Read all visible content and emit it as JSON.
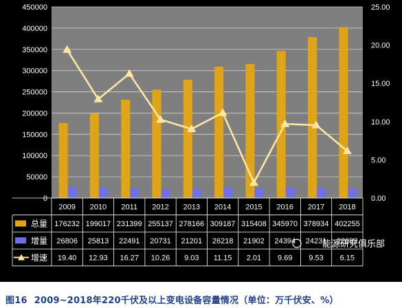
{
  "caption": {
    "number": "图16",
    "text": "2009~2018年220千伏及以上变电设备容量情况（单位：万千伏安、%）"
  },
  "watermark": "能源研究俱乐部",
  "colors": {
    "background": "#000000",
    "plot_background": "#7f7f7f",
    "total_bar": "#e0a417",
    "increment_bar": "#6f6fe6",
    "growth_line": "#ffe6a3",
    "gridline": "#cfcfcf",
    "caption": "#1f3f8a"
  },
  "chart_data": {
    "type": "bar",
    "categories": [
      "2009",
      "2010",
      "2011",
      "2012",
      "2013",
      "2014",
      "2015",
      "2016",
      "2017",
      "2018"
    ],
    "series": [
      {
        "name": "总量",
        "type": "bar",
        "axis": "left",
        "values": [
          176232,
          199017,
          231399,
          255137,
          278166,
          309187,
          315408,
          345970,
          378934,
          402255
        ],
        "labels": [
          "176232",
          "199017",
          "231399",
          "255137",
          "278166",
          "309187",
          "315408",
          "345970",
          "378934",
          "402255"
        ]
      },
      {
        "name": "增量",
        "type": "bar",
        "axis": "left",
        "values": [
          26806,
          25813,
          22491,
          20731,
          21201,
          26218,
          21902,
          24394,
          24231,
          22082
        ],
        "labels": [
          "26806",
          "25813",
          "22491",
          "20731",
          "21201",
          "26218",
          "21902",
          "24394",
          "24231",
          "22082"
        ]
      },
      {
        "name": "增速",
        "type": "line",
        "axis": "right",
        "values": [
          19.4,
          12.93,
          16.27,
          10.26,
          9.03,
          11.15,
          2.01,
          9.69,
          9.53,
          6.15
        ],
        "labels": [
          "19.40",
          "12.93",
          "16.27",
          "10.26",
          "9.03",
          "11.15",
          "2.01",
          "9.69",
          "9.53",
          "6.15"
        ]
      }
    ],
    "y_left": {
      "min": 0,
      "max": 450000,
      "ticks": [
        0,
        50000,
        100000,
        150000,
        200000,
        250000,
        300000,
        350000,
        400000,
        450000
      ],
      "tick_labels": [
        "0",
        "50000",
        "100000",
        "150000",
        "200000",
        "250000",
        "300000",
        "350000",
        "400000",
        "450000"
      ]
    },
    "y_right": {
      "min": 0,
      "max": 25,
      "ticks": [
        0,
        5,
        10,
        15,
        20,
        25
      ],
      "tick_labels": [
        "0.00",
        "5.00",
        "10.00",
        "15.00",
        "20.00",
        "25.00"
      ]
    },
    "grid": true,
    "legend": "data-table-below"
  }
}
